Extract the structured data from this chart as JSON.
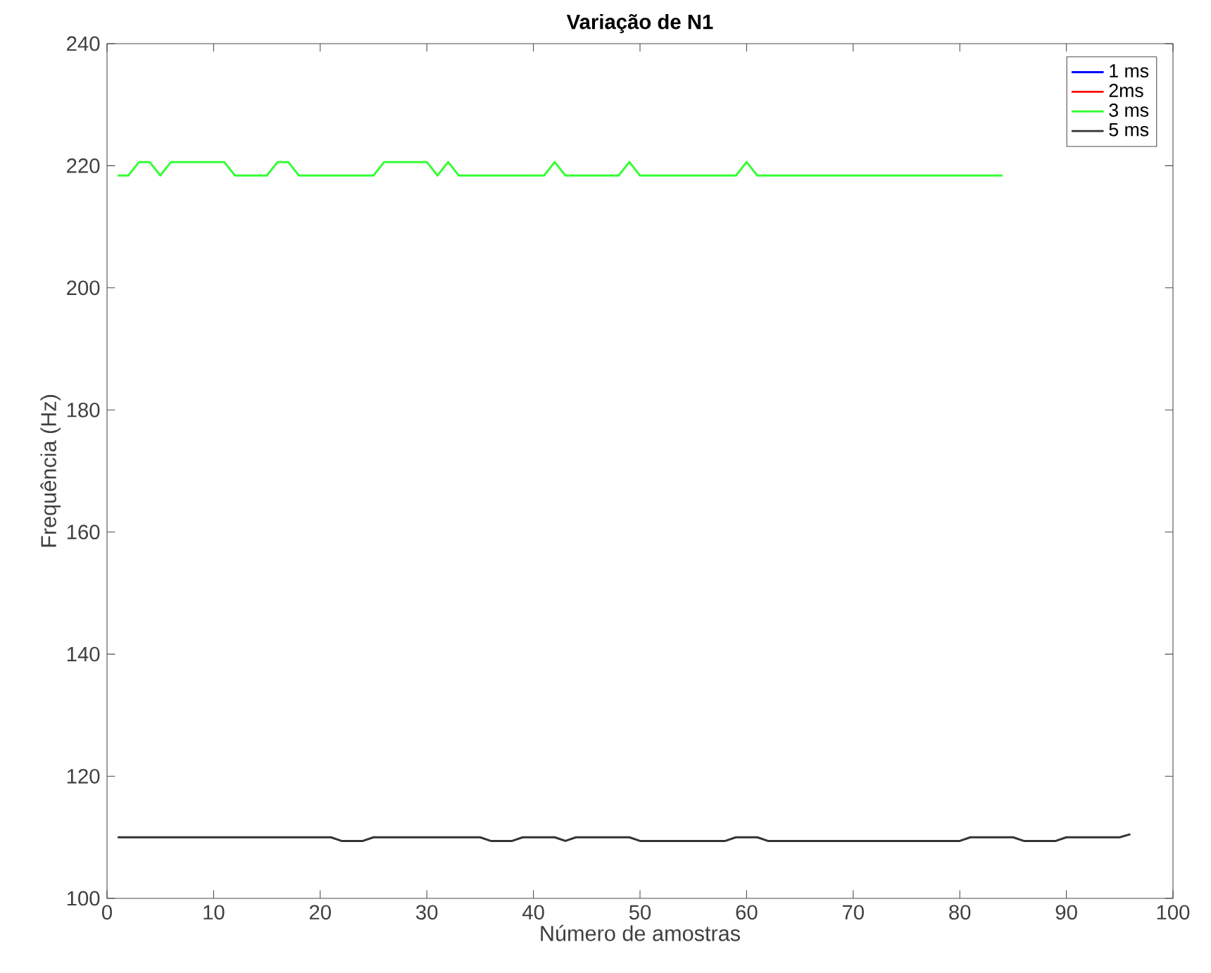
{
  "chart_data": {
    "type": "line",
    "title": "Variação de N1",
    "xlabel": "Número de amostras",
    "ylabel": "Frequência (Hz)",
    "x": [
      1,
      2,
      3,
      4,
      5,
      6,
      7,
      8,
      9,
      10,
      11,
      12,
      13,
      14,
      15,
      16,
      17,
      18,
      19,
      20,
      21,
      22,
      23,
      24,
      25,
      26,
      27,
      28,
      29,
      30,
      31,
      32,
      33,
      34,
      35,
      36,
      37,
      38,
      39,
      40,
      41,
      42,
      43,
      44,
      45,
      46,
      47,
      48,
      49,
      50,
      51,
      52,
      53,
      54,
      55,
      56,
      57,
      58,
      59,
      60,
      61,
      62,
      63,
      64,
      65,
      66,
      67,
      68,
      69,
      70,
      71,
      72,
      73,
      74,
      75,
      76,
      77,
      78,
      79,
      80,
      81,
      82,
      83,
      84,
      85,
      86,
      87,
      88,
      89,
      90,
      91,
      92,
      93,
      94,
      95,
      96
    ],
    "series": [
      {
        "name": "1 ms",
        "color": "#0000ff",
        "values": [
          null,
          null,
          null,
          null,
          null,
          null,
          null,
          null,
          null,
          null,
          null,
          null,
          null,
          null,
          null,
          null,
          null,
          null,
          null,
          null,
          null,
          null,
          null,
          null,
          null,
          null,
          null,
          null,
          null,
          null,
          null,
          null,
          null,
          null,
          null,
          null,
          null,
          null,
          null,
          null,
          null,
          null,
          null,
          null,
          null,
          null,
          null,
          null,
          null,
          null,
          null,
          null,
          null,
          null,
          null,
          null,
          null,
          null,
          null,
          null,
          null,
          null,
          null,
          null,
          null,
          null,
          null,
          null,
          null,
          null,
          null,
          null,
          null,
          null,
          null,
          null,
          null,
          null,
          null,
          null,
          null,
          null,
          null,
          null,
          null,
          null,
          null,
          null,
          null,
          null,
          null,
          null,
          null,
          null,
          null,
          null
        ]
      },
      {
        "name": "2ms",
        "color": "#ff0000",
        "values": [
          null,
          null,
          null,
          null,
          null,
          null,
          null,
          null,
          null,
          null,
          null,
          null,
          null,
          null,
          null,
          null,
          null,
          null,
          null,
          null,
          null,
          null,
          null,
          null,
          null,
          null,
          null,
          null,
          null,
          null,
          null,
          null,
          null,
          null,
          null,
          null,
          null,
          null,
          null,
          null,
          null,
          null,
          null,
          null,
          null,
          null,
          null,
          null,
          null,
          null,
          null,
          null,
          null,
          null,
          null,
          null,
          null,
          null,
          null,
          null,
          null,
          null,
          null,
          null,
          null,
          null,
          null,
          null,
          null,
          null,
          null,
          null,
          null,
          null,
          null,
          null,
          null,
          null,
          null,
          null,
          null,
          null,
          null,
          null,
          null,
          null,
          null,
          null,
          null,
          null,
          null,
          null,
          null,
          null,
          null,
          null
        ]
      },
      {
        "name": "3 ms",
        "color": "#33ff33",
        "values": [
          218.4,
          218.4,
          220.6,
          220.6,
          218.4,
          220.6,
          220.6,
          220.6,
          220.6,
          220.6,
          220.6,
          218.4,
          218.4,
          218.4,
          218.4,
          220.6,
          220.6,
          218.4,
          218.4,
          218.4,
          218.4,
          218.4,
          218.4,
          218.4,
          218.4,
          220.6,
          220.6,
          220.6,
          220.6,
          220.6,
          218.4,
          220.6,
          218.4,
          218.4,
          218.4,
          218.4,
          218.4,
          218.4,
          218.4,
          218.4,
          218.4,
          220.6,
          218.4,
          218.4,
          218.4,
          218.4,
          218.4,
          218.4,
          220.6,
          218.4,
          218.4,
          218.4,
          218.4,
          218.4,
          218.4,
          218.4,
          218.4,
          218.4,
          218.4,
          220.6,
          218.4,
          218.4,
          218.4,
          218.4,
          218.4,
          218.4,
          218.4,
          218.4,
          218.4,
          218.4,
          218.4,
          218.4,
          218.4,
          218.4,
          218.4,
          218.4,
          218.4,
          218.4,
          218.4,
          218.4,
          218.4,
          218.4,
          218.4,
          218.4,
          null,
          null,
          null,
          null,
          null,
          null,
          null,
          null,
          null,
          null,
          null,
          null
        ]
      },
      {
        "name": "5 ms",
        "color": "#333333",
        "values": [
          110,
          110,
          110,
          110,
          110,
          110,
          110,
          110,
          110,
          110,
          110,
          110,
          110,
          110,
          110,
          110,
          110,
          110,
          110,
          110,
          110,
          109.4,
          109.4,
          109.4,
          110,
          110,
          110,
          110,
          110,
          110,
          110,
          110,
          110,
          110,
          110,
          109.4,
          109.4,
          109.4,
          110,
          110,
          110,
          110,
          109.4,
          110,
          110,
          110,
          110,
          110,
          110,
          109.4,
          109.4,
          109.4,
          109.4,
          109.4,
          109.4,
          109.4,
          109.4,
          109.4,
          110,
          110,
          110,
          109.4,
          109.4,
          109.4,
          109.4,
          109.4,
          109.4,
          109.4,
          109.4,
          109.4,
          109.4,
          109.4,
          109.4,
          109.4,
          109.4,
          109.4,
          109.4,
          109.4,
          109.4,
          109.4,
          110,
          110,
          110,
          110,
          110,
          109.4,
          109.4,
          109.4,
          109.4,
          110,
          110,
          110,
          110,
          110,
          110,
          110.5
        ]
      }
    ],
    "xlim": [
      0,
      100
    ],
    "ylim": [
      100,
      240
    ],
    "xticks": [
      0,
      10,
      20,
      30,
      40,
      50,
      60,
      70,
      80,
      90,
      100
    ],
    "yticks": [
      100,
      120,
      140,
      160,
      180,
      200,
      220,
      240
    ],
    "legend": "top right",
    "grid": false,
    "line_style": "solid",
    "marker": "none"
  }
}
